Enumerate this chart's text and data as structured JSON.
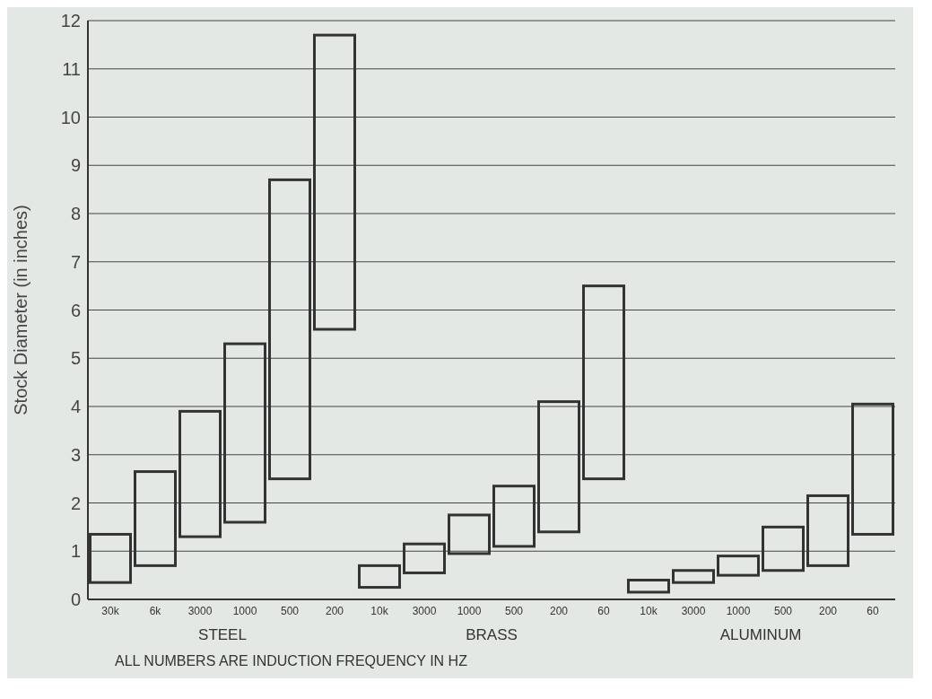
{
  "chart_data": {
    "type": "bar",
    "ylabel": "Stock Diameter (in inches)",
    "categories": [
      "30k",
      "6k",
      "3000",
      "1000",
      "500",
      "200",
      "10k",
      "3000",
      "1000",
      "500",
      "200",
      "60",
      "10k",
      "3000",
      "1000",
      "500",
      "200",
      "60"
    ],
    "values": [
      1.0,
      1.95,
      2.6,
      3.7,
      6.2,
      6.1,
      0.45,
      0.6,
      0.8,
      1.25,
      2.7,
      4.0,
      0.25,
      0.25,
      0.4,
      0.9,
      1.45,
      2.7
    ],
    "base": [
      0.35,
      0.7,
      1.3,
      1.6,
      2.5,
      5.6,
      0.25,
      0.55,
      0.95,
      1.1,
      1.4,
      2.5,
      0.15,
      0.35,
      0.5,
      0.6,
      0.7,
      1.35
    ],
    "color": "#333333",
    "ylim": [
      0,
      12
    ],
    "yticks": [
      0,
      1,
      2,
      3,
      4,
      5,
      6,
      7,
      8,
      9,
      10,
      11,
      12
    ],
    "grid": "y",
    "annotations": [
      "STEEL",
      "BRASS",
      "ALUMINUM",
      "ALL NUMBERS ARE INDUCTION FREQUENCY IN HZ"
    ]
  }
}
